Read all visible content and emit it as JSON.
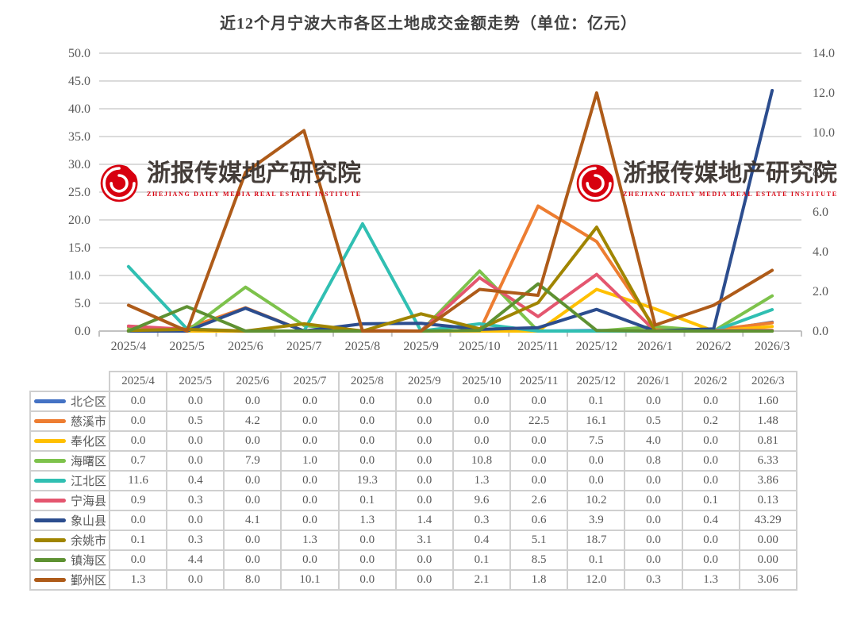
{
  "title": "近12个月宁波大市各区土地成交金额走势（单位：亿元）",
  "watermark": {
    "cn": "浙报传媒地产研究院",
    "en": "ZHEJIANG DAILY MEDIA REAL ESTATE INSTITUTE",
    "logo_color": "#d7000f"
  },
  "style_colors": {
    "title_text": "#404040",
    "axis_text": "#595959",
    "gridline": "#dbdbdb",
    "axis_line": "#c2c2c2",
    "table_border": "#cfcfcf"
  },
  "chart_data": {
    "type": "line",
    "categories": [
      "2025/4",
      "2025/5",
      "2025/6",
      "2025/7",
      "2025/8",
      "2025/9",
      "2025/10",
      "2025/11",
      "2025/12",
      "2026/1",
      "2026/2",
      "2026/3"
    ],
    "left_axis": {
      "min": 0,
      "max": 50,
      "step": 5,
      "format": "0.0"
    },
    "right_axis": {
      "min": 0,
      "max": 14,
      "step": 2,
      "format": "0.0"
    },
    "grid": true,
    "legend_position": "table-left",
    "series": [
      {
        "name": "北仑区",
        "color": "#4472C4",
        "axis": "primary",
        "values": [
          0.0,
          0.0,
          0.0,
          0.0,
          0.0,
          0.0,
          0.0,
          0.0,
          0.1,
          0.0,
          0.0,
          1.6
        ],
        "display": [
          "0.0",
          "0.0",
          "0.0",
          "0.0",
          "0.0",
          "0.0",
          "0.0",
          "0.0",
          "0.1",
          "0.0",
          "0.0",
          "1.60"
        ]
      },
      {
        "name": "慈溪市",
        "color": "#ED7D31",
        "axis": "primary",
        "values": [
          0.0,
          0.5,
          4.2,
          0.0,
          0.0,
          0.0,
          0.0,
          22.5,
          16.1,
          0.5,
          0.2,
          1.48
        ],
        "display": [
          "0.0",
          "0.5",
          "4.2",
          "0.0",
          "0.0",
          "0.0",
          "0.0",
          "22.5",
          "16.1",
          "0.5",
          "0.2",
          "1.48"
        ]
      },
      {
        "name": "奉化区",
        "color": "#FFC000",
        "axis": "primary",
        "values": [
          0.0,
          0.0,
          0.0,
          0.0,
          0.0,
          0.0,
          0.0,
          0.0,
          7.5,
          4.0,
          0.0,
          0.81
        ],
        "display": [
          "0.0",
          "0.0",
          "0.0",
          "0.0",
          "0.0",
          "0.0",
          "0.0",
          "0.0",
          "7.5",
          "4.0",
          "0.0",
          "0.81"
        ]
      },
      {
        "name": "海曙区",
        "color": "#7DC24B",
        "axis": "primary",
        "values": [
          0.7,
          0.0,
          7.9,
          1.0,
          0.0,
          0.0,
          10.8,
          0.0,
          0.0,
          0.8,
          0.0,
          6.33
        ],
        "display": [
          "0.7",
          "0.0",
          "7.9",
          "1.0",
          "0.0",
          "0.0",
          "10.8",
          "0.0",
          "0.0",
          "0.8",
          "0.0",
          "6.33"
        ]
      },
      {
        "name": "江北区",
        "color": "#30BFB2",
        "axis": "primary",
        "values": [
          11.6,
          0.4,
          0.0,
          0.0,
          19.3,
          0.0,
          1.3,
          0.0,
          0.0,
          0.0,
          0.0,
          3.86
        ],
        "display": [
          "11.6",
          "0.4",
          "0.0",
          "0.0",
          "19.3",
          "0.0",
          "1.3",
          "0.0",
          "0.0",
          "0.0",
          "0.0",
          "3.86"
        ]
      },
      {
        "name": "宁海县",
        "color": "#E4566F",
        "axis": "primary",
        "values": [
          0.9,
          0.3,
          0.0,
          0.0,
          0.1,
          0.0,
          9.6,
          2.6,
          10.2,
          0.0,
          0.1,
          0.13
        ],
        "display": [
          "0.9",
          "0.3",
          "0.0",
          "0.0",
          "0.1",
          "0.0",
          "9.6",
          "2.6",
          "10.2",
          "0.0",
          "0.1",
          "0.13"
        ]
      },
      {
        "name": "象山县",
        "color": "#2C4D8E",
        "axis": "primary",
        "values": [
          0.0,
          0.0,
          4.1,
          0.0,
          1.3,
          1.4,
          0.3,
          0.6,
          3.9,
          0.0,
          0.4,
          43.29
        ],
        "display": [
          "0.0",
          "0.0",
          "4.1",
          "0.0",
          "1.3",
          "1.4",
          "0.3",
          "0.6",
          "3.9",
          "0.0",
          "0.4",
          "43.29"
        ]
      },
      {
        "name": "余姚市",
        "color": "#A08500",
        "axis": "primary",
        "values": [
          0.1,
          0.3,
          0.0,
          1.3,
          0.0,
          3.1,
          0.4,
          5.1,
          18.7,
          0.0,
          0.0,
          0.0
        ],
        "display": [
          "0.1",
          "0.3",
          "0.0",
          "1.3",
          "0.0",
          "3.1",
          "0.4",
          "5.1",
          "18.7",
          "0.0",
          "0.0",
          "0.00"
        ]
      },
      {
        "name": "镇海区",
        "color": "#5E9132",
        "axis": "primary",
        "values": [
          0.0,
          4.4,
          0.0,
          0.0,
          0.0,
          0.0,
          0.1,
          8.5,
          0.1,
          0.0,
          0.0,
          0.0
        ],
        "display": [
          "0.0",
          "4.4",
          "0.0",
          "0.0",
          "0.0",
          "0.0",
          "0.1",
          "8.5",
          "0.1",
          "0.0",
          "0.0",
          "0.00"
        ]
      },
      {
        "name": "鄞州区",
        "color": "#AE5B19",
        "axis": "secondary",
        "values": [
          1.3,
          0.0,
          8.0,
          10.1,
          0.0,
          0.0,
          2.1,
          1.8,
          12.0,
          0.3,
          1.3,
          3.06
        ],
        "display": [
          "1.3",
          "0.0",
          "8.0",
          "10.1",
          "0.0",
          "0.0",
          "2.1",
          "1.8",
          "12.0",
          "0.3",
          "1.3",
          "3.06"
        ]
      }
    ]
  }
}
